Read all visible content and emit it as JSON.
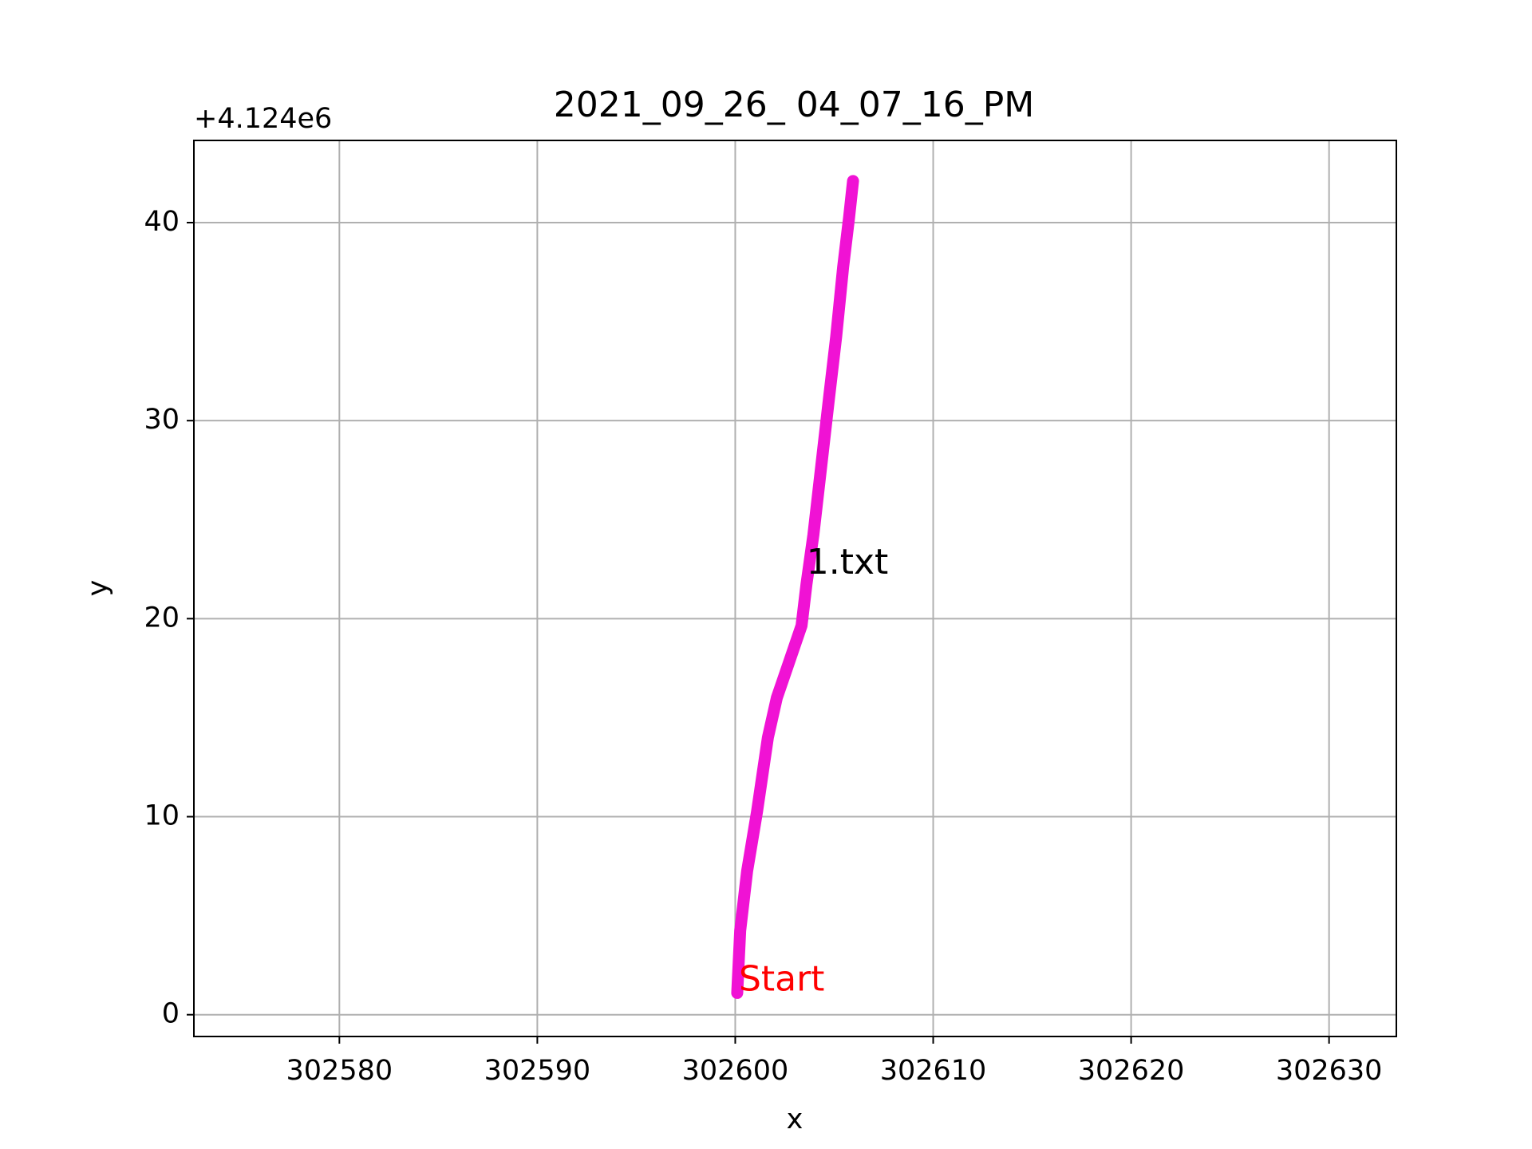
{
  "chart_data": {
    "type": "line",
    "title": "2021_09_26_ 04_07_16_PM",
    "x_label": "x",
    "y_label": "y",
    "y_offset_label": "+4.124e6",
    "x": [
      302600.1,
      302600.25,
      302600.6,
      302601.1,
      302601.65,
      302602.1,
      302602.7,
      302603.35,
      302603.6,
      302603.95,
      302604.35,
      302604.75,
      302605.1,
      302605.45,
      302605.75,
      302605.95
    ],
    "values": [
      1.1,
      4.25,
      7.25,
      10.25,
      14.0,
      16.0,
      17.75,
      19.65,
      21.75,
      24.25,
      27.75,
      31.25,
      34.25,
      37.75,
      40.25,
      42.1
    ],
    "color": "#f012d4",
    "annotations": [
      {
        "text": "1.txt",
        "color": "#000000"
      },
      {
        "text": "Start",
        "color": "#ff0000"
      }
    ],
    "xlim": [
      302572.65,
      302633.4
    ],
    "xticks": [
      302580,
      302590,
      302600,
      302610,
      302620,
      302630
    ],
    "ylim": [
      -1.1,
      44.15
    ],
    "yticks": [
      0,
      10,
      20,
      30,
      40
    ],
    "grid": true
  }
}
